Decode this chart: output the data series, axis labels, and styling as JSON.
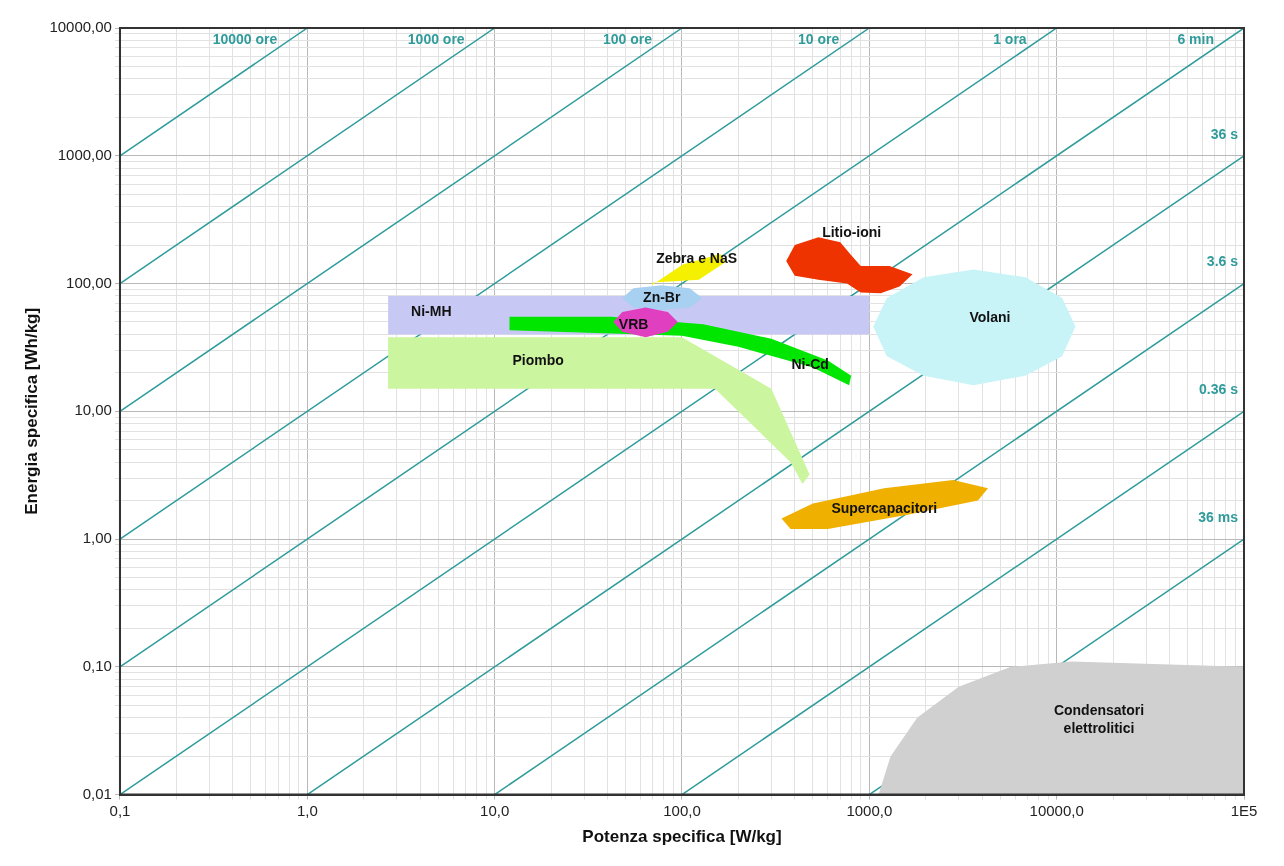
{
  "chart_data": {
    "type": "line",
    "xlabel": "Potenza specifica [W/kg]",
    "ylabel": "Energia specifica [Wh/kg]",
    "log": "xy",
    "grid": true,
    "legend": false,
    "xlim": [
      0.1,
      100000
    ],
    "ylim": [
      0.01,
      10000
    ],
    "xticks": [
      {
        "value": 0.1,
        "label": "0,1"
      },
      {
        "value": 0.2,
        "label": null
      },
      {
        "value": 0.3,
        "label": null
      },
      {
        "value": 0.4,
        "label": null
      },
      {
        "value": 0.5,
        "label": null
      },
      {
        "value": 0.6,
        "label": null
      },
      {
        "value": 0.7,
        "label": null
      },
      {
        "value": 0.8,
        "label": null
      },
      {
        "value": 0.9,
        "label": null
      },
      {
        "value": 1,
        "label": "1,0"
      },
      {
        "value": 2,
        "label": null
      },
      {
        "value": 3,
        "label": null
      },
      {
        "value": 4,
        "label": null
      },
      {
        "value": 5,
        "label": null
      },
      {
        "value": 6,
        "label": null
      },
      {
        "value": 7,
        "label": null
      },
      {
        "value": 8,
        "label": null
      },
      {
        "value": 9,
        "label": null
      },
      {
        "value": 10,
        "label": "10,0"
      },
      {
        "value": 20,
        "label": null
      },
      {
        "value": 30,
        "label": null
      },
      {
        "value": 40,
        "label": null
      },
      {
        "value": 50,
        "label": null
      },
      {
        "value": 60,
        "label": null
      },
      {
        "value": 70,
        "label": null
      },
      {
        "value": 80,
        "label": null
      },
      {
        "value": 90,
        "label": null
      },
      {
        "value": 100,
        "label": "100,0"
      },
      {
        "value": 200,
        "label": null
      },
      {
        "value": 300,
        "label": null
      },
      {
        "value": 400,
        "label": null
      },
      {
        "value": 500,
        "label": null
      },
      {
        "value": 600,
        "label": null
      },
      {
        "value": 700,
        "label": null
      },
      {
        "value": 800,
        "label": null
      },
      {
        "value": 900,
        "label": null
      },
      {
        "value": 1000,
        "label": "1000,0"
      },
      {
        "value": 2000,
        "label": null
      },
      {
        "value": 3000,
        "label": null
      },
      {
        "value": 4000,
        "label": null
      },
      {
        "value": 5000,
        "label": null
      },
      {
        "value": 6000,
        "label": null
      },
      {
        "value": 7000,
        "label": null
      },
      {
        "value": 8000,
        "label": null
      },
      {
        "value": 9000,
        "label": null
      },
      {
        "value": 10000,
        "label": "10000,0"
      },
      {
        "value": 20000,
        "label": null
      },
      {
        "value": 30000,
        "label": null
      },
      {
        "value": 40000,
        "label": null
      },
      {
        "value": 50000,
        "label": null
      },
      {
        "value": 60000,
        "label": null
      },
      {
        "value": 70000,
        "label": null
      },
      {
        "value": 80000,
        "label": null
      },
      {
        "value": 90000,
        "label": null
      },
      {
        "value": 100000,
        "label": "1E5"
      }
    ],
    "yticks": [
      {
        "value": 0.01,
        "label": "0,01"
      },
      {
        "value": 0.02,
        "label": null
      },
      {
        "value": 0.03,
        "label": null
      },
      {
        "value": 0.04,
        "label": null
      },
      {
        "value": 0.05,
        "label": null
      },
      {
        "value": 0.06,
        "label": null
      },
      {
        "value": 0.07,
        "label": null
      },
      {
        "value": 0.08,
        "label": null
      },
      {
        "value": 0.09,
        "label": null
      },
      {
        "value": 0.1,
        "label": "0,10"
      },
      {
        "value": 0.2,
        "label": null
      },
      {
        "value": 0.3,
        "label": null
      },
      {
        "value": 0.4,
        "label": null
      },
      {
        "value": 0.5,
        "label": null
      },
      {
        "value": 0.6,
        "label": null
      },
      {
        "value": 0.7,
        "label": null
      },
      {
        "value": 0.8,
        "label": null
      },
      {
        "value": 0.9,
        "label": null
      },
      {
        "value": 1,
        "label": "1,00"
      },
      {
        "value": 2,
        "label": null
      },
      {
        "value": 3,
        "label": null
      },
      {
        "value": 4,
        "label": null
      },
      {
        "value": 5,
        "label": null
      },
      {
        "value": 6,
        "label": null
      },
      {
        "value": 7,
        "label": null
      },
      {
        "value": 8,
        "label": null
      },
      {
        "value": 9,
        "label": null
      },
      {
        "value": 10,
        "label": "10,00"
      },
      {
        "value": 20,
        "label": null
      },
      {
        "value": 30,
        "label": null
      },
      {
        "value": 40,
        "label": null
      },
      {
        "value": 50,
        "label": null
      },
      {
        "value": 60,
        "label": null
      },
      {
        "value": 70,
        "label": null
      },
      {
        "value": 80,
        "label": null
      },
      {
        "value": 90,
        "label": null
      },
      {
        "value": 100,
        "label": "100,00"
      },
      {
        "value": 200,
        "label": null
      },
      {
        "value": 300,
        "label": null
      },
      {
        "value": 400,
        "label": null
      },
      {
        "value": 500,
        "label": null
      },
      {
        "value": 600,
        "label": null
      },
      {
        "value": 700,
        "label": null
      },
      {
        "value": 800,
        "label": null
      },
      {
        "value": 900,
        "label": null
      },
      {
        "value": 1000,
        "label": "1000,00"
      },
      {
        "value": 2000,
        "label": null
      },
      {
        "value": 3000,
        "label": null
      },
      {
        "value": 4000,
        "label": null
      },
      {
        "value": 5000,
        "label": null
      },
      {
        "value": 6000,
        "label": null
      },
      {
        "value": 7000,
        "label": null
      },
      {
        "value": 8000,
        "label": null
      },
      {
        "value": 9000,
        "label": null
      },
      {
        "value": 10000,
        "label": "10000,00"
      }
    ],
    "series": [
      {
        "type": "line",
        "name": "10000 ore",
        "color": "#2f9b9b",
        "x": [
          0.1,
          1
        ],
        "values": [
          1000,
          10000
        ]
      },
      {
        "type": "line",
        "name": "1000 ore",
        "color": "#2f9b9b",
        "x": [
          0.1,
          10
        ],
        "values": [
          100,
          10000
        ]
      },
      {
        "type": "line",
        "name": "100 ore",
        "color": "#2f9b9b",
        "x": [
          0.1,
          100
        ],
        "values": [
          10,
          10000
        ]
      },
      {
        "type": "line",
        "name": "10 ore",
        "color": "#2f9b9b",
        "x": [
          0.1,
          1000
        ],
        "values": [
          1,
          10000
        ]
      },
      {
        "type": "line",
        "name": "1 ora",
        "color": "#2f9b9b",
        "x": [
          0.1,
          10000
        ],
        "values": [
          0.1,
          10000
        ]
      },
      {
        "type": "line",
        "name": "6 min",
        "color": "#2f9b9b",
        "x": [
          0.1,
          100000
        ],
        "values": [
          0.01,
          10000
        ]
      },
      {
        "type": "line",
        "name": "36 s",
        "color": "#2f9b9b",
        "x": [
          1,
          100000
        ],
        "values": [
          0.01,
          1000
        ]
      },
      {
        "type": "line",
        "name": "3.6 s",
        "color": "#2f9b9b",
        "x": [
          10,
          100000
        ],
        "values": [
          0.01,
          100
        ]
      },
      {
        "type": "line",
        "name": "0.36 s",
        "color": "#2f9b9b",
        "x": [
          100,
          100000
        ],
        "values": [
          0.01,
          10
        ]
      },
      {
        "type": "line",
        "name": "36 ms",
        "color": "#2f9b9b",
        "x": [
          1000,
          100000
        ],
        "values": [
          0.01,
          1
        ]
      },
      {
        "type": "area",
        "name": "Piombo",
        "color": "#ccf5a0",
        "x": [
          2.7,
          100,
          300,
          480,
          440,
          380,
          150,
          2.7
        ],
        "values": [
          38,
          38,
          15,
          3.2,
          2.7,
          4,
          15,
          15
        ]
      },
      {
        "type": "area",
        "name": "Ni-MH",
        "color": "#c8c8f5",
        "x": [
          2.7,
          1000,
          1000,
          2.7
        ],
        "values": [
          80,
          80,
          40,
          40
        ]
      },
      {
        "type": "area",
        "name": "Ni-Cd",
        "color": "#00e600",
        "x": [
          12,
          42,
          130,
          300,
          600,
          800,
          780,
          500,
          200,
          100,
          12
        ],
        "values": [
          55,
          55,
          48,
          37,
          25,
          19,
          16,
          22,
          32,
          39,
          43
        ]
      },
      {
        "type": "area",
        "name": "Zebra e NaS",
        "color": "#f5f000",
        "x": [
          69,
          101,
          160,
          170,
          123,
          70
        ],
        "values": [
          97,
          141,
          170,
          147,
          107,
          102
        ]
      },
      {
        "type": "area",
        "name": "Zn-Br",
        "color": "#a8d0f0",
        "x": [
          128,
          110,
          78,
          55,
          48,
          55,
          78,
          110
        ],
        "values": [
          77,
          92,
          97,
          92,
          77,
          65,
          62,
          65
        ]
      },
      {
        "type": "area",
        "name": "VRB",
        "color": "#e040c0",
        "x": [
          95,
          84,
          64,
          48,
          43,
          48,
          64,
          84
        ],
        "values": [
          50,
          60,
          65,
          60,
          50,
          42,
          38,
          42
        ]
      },
      {
        "type": "area",
        "name": "Litio-ioni",
        "color": "#ee3300",
        "x": [
          360,
          400,
          535,
          700,
          790,
          900,
          1280,
          1700,
          1450,
          1150,
          900,
          760,
          535,
          400
        ],
        "values": [
          150,
          200,
          230,
          210,
          170,
          137,
          137,
          118,
          95,
          84,
          85,
          100,
          107,
          115
        ]
      },
      {
        "type": "area",
        "name": "Volani",
        "color": "#c8f4f8",
        "x": [
          12600,
          10700,
          6800,
          3600,
          1950,
          1240,
          1050,
          1240,
          1950,
          3600,
          6800,
          10700
        ],
        "values": [
          46,
          77,
          112,
          129,
          112,
          77,
          46,
          27,
          19,
          16,
          19,
          27
        ]
      },
      {
        "type": "area",
        "name": "Supercapacitori",
        "color": "#f0b000",
        "x": [
          340,
          500,
          1200,
          2800,
          4300,
          3800,
          1600,
          600,
          380
        ],
        "values": [
          1.45,
          1.9,
          2.5,
          2.9,
          2.5,
          2.0,
          1.55,
          1.2,
          1.2
        ]
      },
      {
        "type": "area",
        "name": "Condensatori elettrolitici",
        "color": "#d0d0d0",
        "x": [
          1120,
          1300,
          1800,
          3000,
          5700,
          12000,
          100000,
          100000
        ],
        "values": [
          0.01,
          0.02,
          0.04,
          0.07,
          0.1,
          0.11,
          0.1,
          0.01
        ]
      }
    ]
  }
}
